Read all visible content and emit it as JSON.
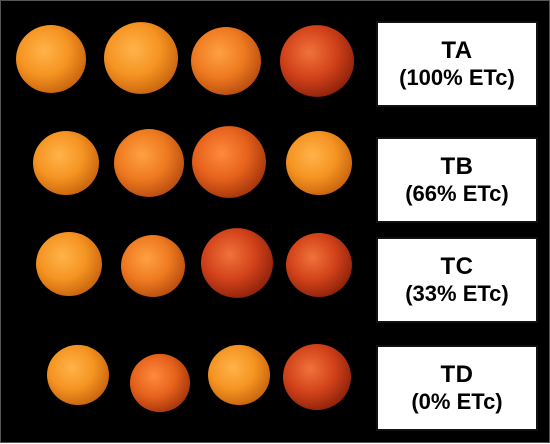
{
  "treatments": [
    {
      "code": "TA",
      "etc_label": "(100% ETc)",
      "fruits": [
        {
          "tone": "orange"
        },
        {
          "tone": "orange"
        },
        {
          "tone": "orange-blush"
        },
        {
          "tone": "red"
        }
      ]
    },
    {
      "code": "TB",
      "etc_label": "(66% ETc)",
      "fruits": [
        {
          "tone": "orange"
        },
        {
          "tone": "orange-blush"
        },
        {
          "tone": "red-orange"
        },
        {
          "tone": "orange"
        }
      ]
    },
    {
      "code": "TC",
      "etc_label": "(33% ETc)",
      "fruits": [
        {
          "tone": "orange"
        },
        {
          "tone": "orange-blush"
        },
        {
          "tone": "red"
        },
        {
          "tone": "red"
        }
      ]
    },
    {
      "code": "TD",
      "etc_label": "(0% ETc)",
      "fruits": [
        {
          "tone": "orange"
        },
        {
          "tone": "red-orange"
        },
        {
          "tone": "orange"
        },
        {
          "tone": "red"
        }
      ]
    }
  ],
  "colors": {
    "background": "#000000",
    "orange": "#f39220",
    "orange-blush": "#ee7a1f",
    "red-orange": "#e8621c",
    "red": "#d2421a"
  }
}
